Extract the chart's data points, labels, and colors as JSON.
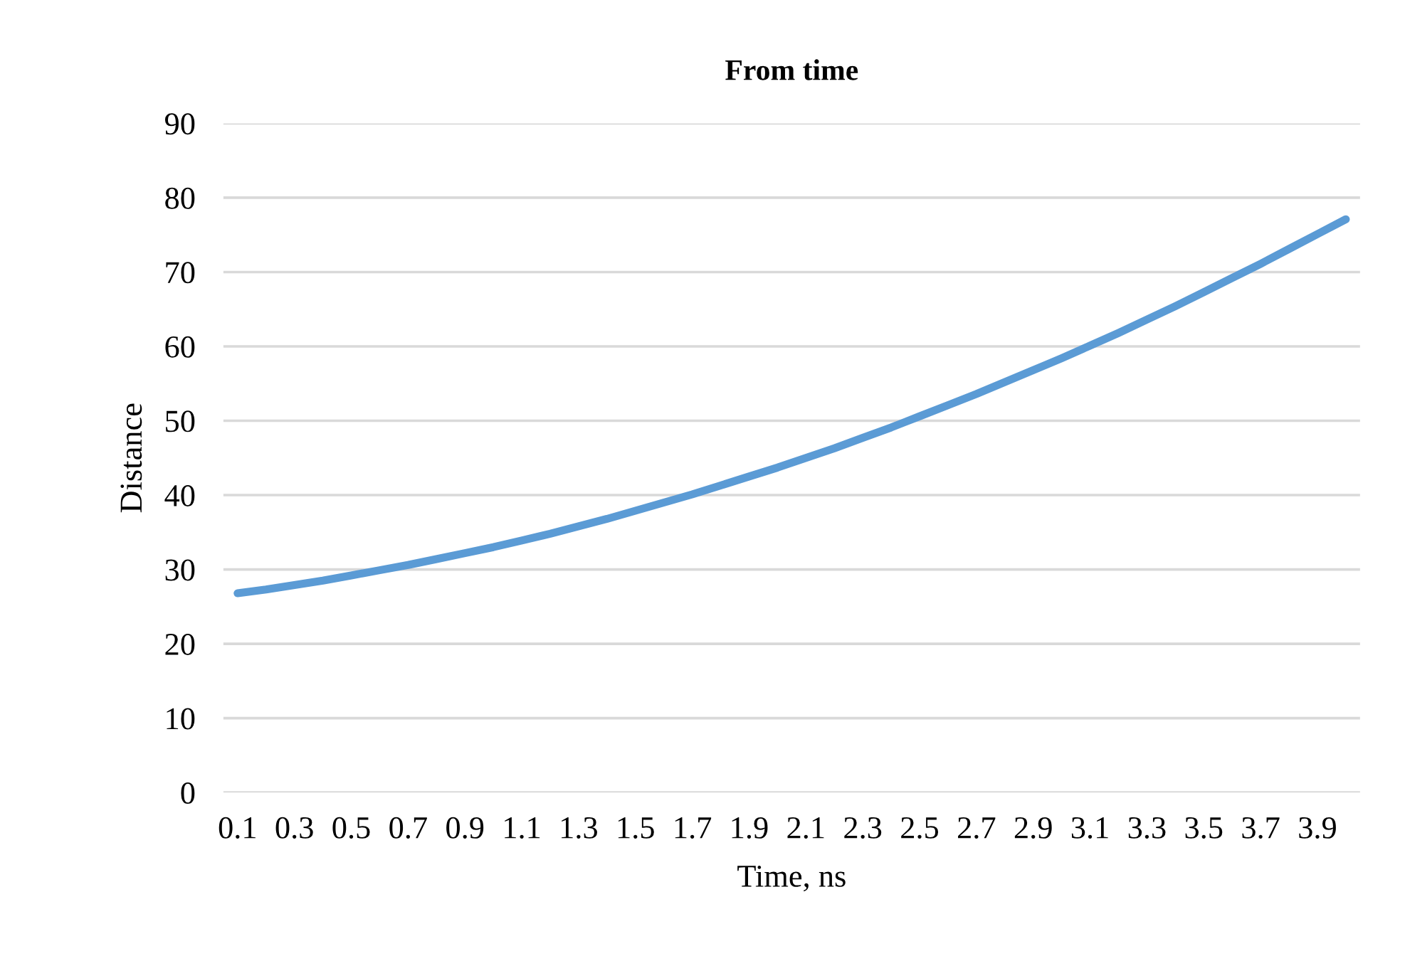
{
  "chart_data": {
    "type": "line",
    "title": "From time",
    "xlabel": "Time, ns",
    "ylabel": "Distance",
    "categories": [
      "0.1",
      null,
      "0.3",
      null,
      "0.5",
      null,
      "0.7",
      null,
      "0.9",
      null,
      "1.1",
      null,
      "1.3",
      null,
      "1.5",
      null,
      "1.7",
      null,
      "1.9",
      null,
      "2.1",
      null,
      "2.3",
      null,
      "2.5",
      null,
      "2.7",
      null,
      "2.9",
      null,
      "3.1",
      null,
      "3.3",
      null,
      "3.5",
      null,
      "3.7",
      null,
      "3.9",
      null
    ],
    "series": [
      {
        "color": "#5b9bd5",
        "values": [
          26.8,
          27.3,
          27.9,
          28.5,
          29.2,
          29.9,
          30.6,
          31.4,
          32.2,
          33.0,
          33.9,
          34.8,
          35.8,
          36.8,
          37.9,
          39.0,
          40.1,
          41.3,
          42.5,
          43.7,
          45.0,
          46.3,
          47.7,
          49.1,
          50.6,
          52.1,
          53.6,
          55.2,
          56.8,
          58.4,
          60.1,
          61.8,
          63.6,
          65.4,
          67.3,
          69.2,
          71.1,
          73.1,
          75.1,
          77.1
        ]
      }
    ],
    "ylim": [
      0,
      90
    ],
    "yticks": [
      0,
      10,
      20,
      30,
      40,
      50,
      60,
      70,
      80,
      90
    ],
    "grid": "y",
    "marker": "none",
    "line_style": "solid"
  }
}
